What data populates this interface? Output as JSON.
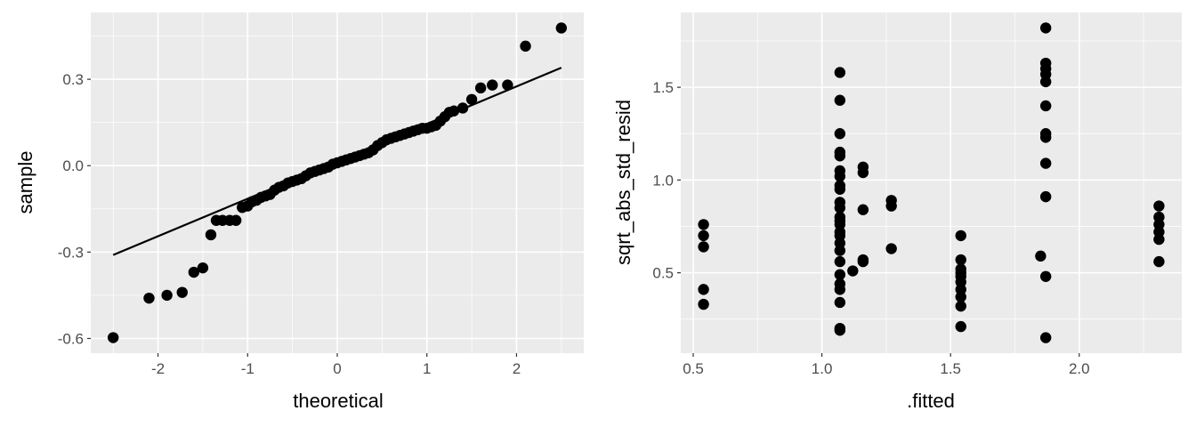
{
  "chart_data": [
    {
      "type": "scatter",
      "xlabel": "theoretical",
      "ylabel": "sample",
      "xlim": [
        -2.75,
        2.75
      ],
      "ylim": [
        -0.651,
        0.532
      ],
      "xticks": [
        -2,
        -1,
        0,
        1,
        2
      ],
      "xtick_labels": [
        "-2",
        "-1",
        "0",
        "1",
        "2"
      ],
      "yticks": [
        -0.6,
        -0.3,
        0.0,
        0.3
      ],
      "ytick_labels": [
        "-0.6",
        "-0.3",
        "0.0",
        "0.3"
      ],
      "grid": true,
      "panel_color": "#EBEBEB",
      "point_color": "#000000",
      "reference_line": {
        "x": [
          -2.5,
          2.5
        ],
        "y": [
          -0.31,
          0.34
        ]
      },
      "points": [
        [
          -2.5,
          -0.597
        ],
        [
          -2.1,
          -0.46
        ],
        [
          -1.9,
          -0.45
        ],
        [
          -1.73,
          -0.44
        ],
        [
          -1.6,
          -0.37
        ],
        [
          -1.5,
          -0.355
        ],
        [
          -1.41,
          -0.24
        ],
        [
          -1.35,
          -0.19
        ],
        [
          -1.28,
          -0.19
        ],
        [
          -1.2,
          -0.19
        ],
        [
          -1.13,
          -0.19
        ],
        [
          -1.06,
          -0.145
        ],
        [
          -1.0,
          -0.14
        ],
        [
          -0.95,
          -0.125
        ],
        [
          -0.9,
          -0.12
        ],
        [
          -0.85,
          -0.11
        ],
        [
          -0.8,
          -0.105
        ],
        [
          -0.75,
          -0.1
        ],
        [
          -0.7,
          -0.085
        ],
        [
          -0.65,
          -0.075
        ],
        [
          -0.6,
          -0.07
        ],
        [
          -0.55,
          -0.06
        ],
        [
          -0.5,
          -0.055
        ],
        [
          -0.45,
          -0.05
        ],
        [
          -0.4,
          -0.045
        ],
        [
          -0.35,
          -0.035
        ],
        [
          -0.3,
          -0.025
        ],
        [
          -0.25,
          -0.02
        ],
        [
          -0.2,
          -0.015
        ],
        [
          -0.15,
          -0.01
        ],
        [
          -0.1,
          -0.005
        ],
        [
          -0.05,
          0.005
        ],
        [
          0,
          0.01
        ],
        [
          0.05,
          0.015
        ],
        [
          0.1,
          0.02
        ],
        [
          0.15,
          0.025
        ],
        [
          0.2,
          0.03
        ],
        [
          0.25,
          0.035
        ],
        [
          0.3,
          0.04
        ],
        [
          0.35,
          0.045
        ],
        [
          0.4,
          0.055
        ],
        [
          0.45,
          0.07
        ],
        [
          0.5,
          0.08
        ],
        [
          0.55,
          0.09
        ],
        [
          0.6,
          0.095
        ],
        [
          0.65,
          0.1
        ],
        [
          0.7,
          0.105
        ],
        [
          0.75,
          0.11
        ],
        [
          0.8,
          0.115
        ],
        [
          0.85,
          0.12
        ],
        [
          0.9,
          0.125
        ],
        [
          0.95,
          0.13
        ],
        [
          1.0,
          0.13
        ],
        [
          1.05,
          0.135
        ],
        [
          1.1,
          0.14
        ],
        [
          1.15,
          0.155
        ],
        [
          1.2,
          0.17
        ],
        [
          1.25,
          0.185
        ],
        [
          1.3,
          0.19
        ],
        [
          1.4,
          0.2
        ],
        [
          1.5,
          0.23
        ],
        [
          1.6,
          0.27
        ],
        [
          1.73,
          0.28
        ],
        [
          1.9,
          0.28
        ],
        [
          2.1,
          0.415
        ],
        [
          2.5,
          0.478
        ]
      ]
    },
    {
      "type": "scatter",
      "xlabel": ".fitted",
      "ylabel": "sqrt_abs_std_resid",
      "xlim": [
        0.4515,
        2.3985
      ],
      "ylim": [
        0.0665,
        1.9035
      ],
      "xticks": [
        0.5,
        1.0,
        1.5,
        2.0
      ],
      "xtick_labels": [
        "0.5",
        "1.0",
        "1.5",
        "2.0"
      ],
      "yticks": [
        0.5,
        1.0,
        1.5
      ],
      "ytick_labels": [
        "0.5",
        "1.0",
        "1.5"
      ],
      "grid": true,
      "panel_color": "#EBEBEB",
      "point_color": "#000000",
      "groups": [
        {
          "x": 0.54,
          "y": [
            0.76,
            0.7,
            0.64,
            0.41,
            0.33
          ]
        },
        {
          "x": 1.07,
          "y": [
            1.58,
            1.43,
            1.25,
            1.15,
            1.13,
            1.05,
            1.02,
            0.97,
            0.95,
            0.88,
            0.85,
            0.8,
            0.78,
            0.76,
            0.72,
            0.7,
            0.66,
            0.62,
            0.56,
            0.49,
            0.44,
            0.41,
            0.34,
            0.2,
            0.19
          ]
        },
        {
          "x": 1.12,
          "y": [
            0.51
          ]
        },
        {
          "x": 1.16,
          "y": [
            1.07,
            1.04,
            0.84,
            0.57,
            0.56
          ]
        },
        {
          "x": 1.27,
          "y": [
            0.89,
            0.86,
            0.63
          ]
        },
        {
          "x": 1.54,
          "y": [
            0.7,
            0.57,
            0.52,
            0.5,
            0.48,
            0.45,
            0.41,
            0.37,
            0.32,
            0.21
          ]
        },
        {
          "x": 1.85,
          "y": [
            0.59
          ]
        },
        {
          "x": 1.87,
          "y": [
            1.82,
            1.63,
            1.6,
            1.57,
            1.53,
            1.4,
            1.25,
            1.23,
            1.09,
            0.91,
            0.48,
            0.15
          ]
        },
        {
          "x": 2.31,
          "y": [
            0.86,
            0.8,
            0.76,
            0.72,
            0.68,
            0.56
          ]
        }
      ]
    }
  ]
}
